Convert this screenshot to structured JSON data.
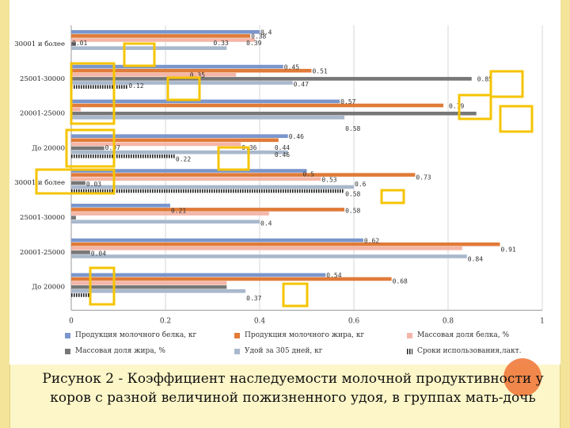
{
  "chart_data": {
    "type": "bar",
    "orientation": "horizontal",
    "categories": [
      "30001 и более",
      "25001-30000",
      "20001-25000",
      "До 20000",
      "30001 и более",
      "25001-30000",
      "20001-25000",
      "До 20000"
    ],
    "series": [
      {
        "name": "Продукция молочного белка, кг",
        "color": "#7a96cc",
        "values": [
          0.4,
          0.45,
          0.57,
          0.46,
          0.5,
          0.21,
          0.62,
          0.54
        ]
      },
      {
        "name": "Продукция молочного жира, кг",
        "color": "#e07b39",
        "values": [
          0.38,
          0.51,
          0.79,
          0.44,
          0.73,
          0.58,
          0.91,
          0.68
        ]
      },
      {
        "name": "Массовая доля белка, %",
        "color": "#f4b6a8",
        "values": [
          0.39,
          0.35,
          0.02,
          0.36,
          0.53,
          0.42,
          0.83,
          0.33
        ]
      },
      {
        "name": "Массовая доля жира, %",
        "color": "#777777",
        "values": [
          0.01,
          0.85,
          0.86,
          0.07,
          0.03,
          0.01,
          0.04,
          0.33
        ]
      },
      {
        "name": "Удой за 305 дней, кг",
        "color": "#a9b8cc",
        "values": [
          0.33,
          0.47,
          0.58,
          0.46,
          0.6,
          0.4,
          0.84,
          0.37
        ]
      },
      {
        "name": "Сроки использования,лакт.",
        "color": "#333333",
        "values": [
          0.0,
          0.12,
          0.0,
          0.22,
          0.58,
          0.0,
          0.0,
          0.04
        ]
      }
    ],
    "data_labels": [
      [
        {
          "t": "0.4",
          "v": 0.4,
          "r": 0
        },
        {
          "t": "0.38",
          "v": 0.38,
          "r": 1
        },
        {
          "t": "0.39",
          "v": 0.37,
          "r": 2.6
        },
        {
          "t": "0.33",
          "v": 0.3,
          "r": 2.6
        },
        {
          "t": "0.01",
          "v": 0.0,
          "r": 2.6
        }
      ],
      [
        {
          "t": "0.45",
          "v": 0.45,
          "r": 0
        },
        {
          "t": "0.51",
          "v": 0.51,
          "r": 1
        },
        {
          "t": "0.35",
          "v": 0.25,
          "r": 2
        },
        {
          "t": "0.85",
          "v": 0.86,
          "r": 3
        },
        {
          "t": "0.47",
          "v": 0.47,
          "r": 4.2
        },
        {
          "t": "0.12",
          "v": 0.12,
          "r": 4.6
        }
      ],
      [
        {
          "t": "0.57",
          "v": 0.57,
          "r": 0
        },
        {
          "t": "0.79",
          "v": 0.8,
          "r": 1
        },
        {
          "t": "0.58",
          "v": 0.58,
          "r": 6.6
        }
      ],
      [
        {
          "t": "0.46",
          "v": 0.46,
          "r": 0
        },
        {
          "t": "0.07",
          "v": 0.07,
          "r": 2.7
        },
        {
          "t": "0.36",
          "v": 0.36,
          "r": 2.7
        },
        {
          "t": "0.44",
          "v": 0.43,
          "r": 2.7
        },
        {
          "t": "0.46",
          "v": 0.43,
          "r": 4.5
        },
        {
          "t": "0.22",
          "v": 0.22,
          "r": 5.6
        }
      ],
      [
        {
          "t": "0.5",
          "v": 0.49,
          "r": 0.7
        },
        {
          "t": "0.73",
          "v": 0.73,
          "r": 1.5
        },
        {
          "t": "0.53",
          "v": 0.53,
          "r": 2.1
        },
        {
          "t": "0.6",
          "v": 0.6,
          "r": 3.2
        },
        {
          "t": "0.03",
          "v": 0.03,
          "r": 3.2
        },
        {
          "t": "0.58",
          "v": 0.58,
          "r": 5.6
        }
      ],
      [
        {
          "t": "0.21",
          "v": 0.21,
          "r": 1.2
        },
        {
          "t": "0.58",
          "v": 0.58,
          "r": 1.2
        },
        {
          "t": "0.4",
          "v": 0.4,
          "r": 4.3
        }
      ],
      [
        {
          "t": "0.62",
          "v": 0.62,
          "r": 0
        },
        {
          "t": "0.91",
          "v": 0.91,
          "r": 2.2
        },
        {
          "t": "0.04",
          "v": 0.04,
          "r": 3.2
        },
        {
          "t": "0.84",
          "v": 0.84,
          "r": 4.5
        }
      ],
      [
        {
          "t": "0.54",
          "v": 0.54,
          "r": 0
        },
        {
          "t": "0.68",
          "v": 0.68,
          "r": 1.4
        },
        {
          "t": "0.37",
          "v": 0.37,
          "r": 5.6
        }
      ]
    ],
    "xlim": [
      0,
      1
    ],
    "xticks": [
      "0",
      "0.2",
      "0.4",
      "0.6",
      "0.8",
      "1"
    ],
    "grid": true,
    "legend_position": "bottom",
    "highlight_color": "#f5c400"
  },
  "caption_line1": "Рисунок 2 - Коэффициент наследуемости молочной продуктивности у",
  "caption_line2": "коров с разной величиной пожизненного удоя, в группах мать-дочь"
}
